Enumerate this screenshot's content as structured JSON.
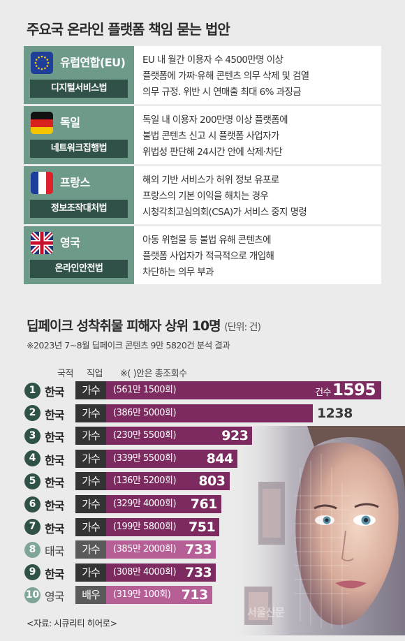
{
  "section1": {
    "title": "주요국 온라인 플랫폼 책임 묻는 법안",
    "rows": [
      {
        "country": "유럽연합(EU)",
        "law": "디지털서비스법",
        "flag": "eu-flag-icon",
        "lines": [
          "EU 내 월간 이용자 수 4500만명 이상",
          "플랫폼에 가짜·유해 콘텐츠 의무 삭제 및 검열",
          "의무 규정. 위반 시 연매출 최대 6% 과징금"
        ]
      },
      {
        "country": "독일",
        "law": "네트워크집행법",
        "flag": "germany-flag-icon",
        "lines": [
          "독일 내 이용자 200만명 이상 플랫폼에",
          "불법 콘텐츠 신고 시 플랫폼 사업자가",
          "위법성 판단해 24시간 안에 삭제·차단"
        ]
      },
      {
        "country": "프랑스",
        "law": "정보조작대처법",
        "flag": "france-flag-icon",
        "lines": [
          "해외 기반 서비스가 허위 정보 유포로",
          "프랑스의 기본 이익을 해치는 경우",
          "시청각최고심의회(CSA)가 서비스 중지 명령"
        ]
      },
      {
        "country": "영국",
        "law": "온라인안전법",
        "flag": "uk-flag-icon",
        "lines": [
          "아동 위험물 등 불법 유해 콘텐츠에",
          "플랫폼 사업자가 적극적으로 개입해",
          "차단하는 의무 부과"
        ]
      }
    ]
  },
  "section2": {
    "title": "딥페이크 성착취물 피해자 상위 10명",
    "unit": "(단위: 건)",
    "note": "※2023년 7~8월 딥페이크 콘텐츠 9만 5820건 분석 결과",
    "headers": {
      "nationality": "국적",
      "job": "직업",
      "plays": "※( )안은 총조회수"
    },
    "value_unit_label": "건수",
    "source": "<자료: 시큐리티 히어로>",
    "watermark": "서울신문"
  },
  "chart_data": {
    "type": "bar",
    "orientation": "horizontal",
    "categories": [
      "1",
      "2",
      "3",
      "4",
      "5",
      "6",
      "7",
      "8",
      "9",
      "10"
    ],
    "values": [
      1595,
      1238,
      923,
      844,
      803,
      761,
      751,
      733,
      733,
      713
    ],
    "labels": [
      "1595",
      "1238",
      "923",
      "844",
      "803",
      "761",
      "751",
      "733",
      "733",
      "713"
    ],
    "nationality": [
      "한국",
      "한국",
      "한국",
      "한국",
      "한국",
      "한국",
      "한국",
      "태국",
      "한국",
      "영국"
    ],
    "job": [
      "가수",
      "가수",
      "가수",
      "가수",
      "가수",
      "가수",
      "가수",
      "가수",
      "가수",
      "배우"
    ],
    "plays": [
      "(561만 1500회)",
      "(386만 5000회)",
      "(230만 5500회)",
      "(339만 5500회)",
      "(136만 5200회)",
      "(329만 4000회)",
      "(199만 5800회)",
      "(385만 2000회)",
      "(308만 4000회)",
      "(319만 100회)"
    ],
    "highlight_non_korea": [
      false,
      false,
      false,
      false,
      false,
      false,
      false,
      true,
      false,
      true
    ],
    "colors": {
      "bar": "#7d2a60",
      "bar_light": "#b55f96"
    },
    "xlim": [
      0,
      1595
    ]
  }
}
